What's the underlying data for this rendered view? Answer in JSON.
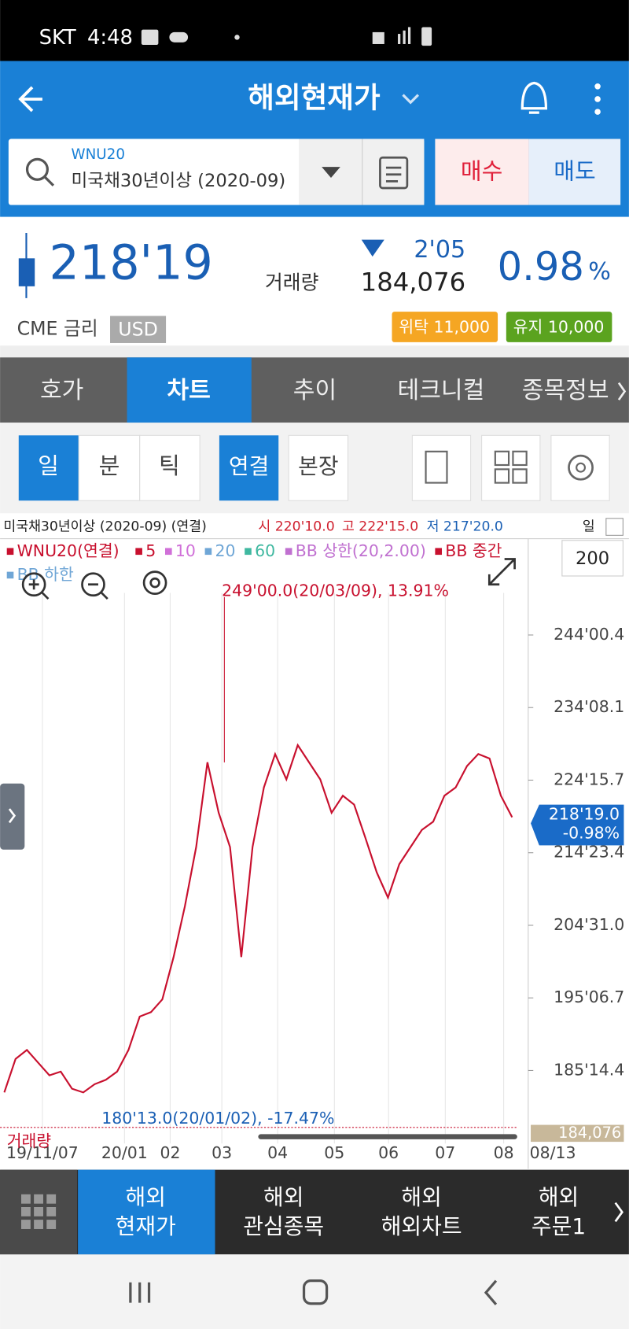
{
  "status": {
    "carrier": "SKT",
    "time": "4:48"
  },
  "header": {
    "title": "해외현재가"
  },
  "search": {
    "code": "WNU20",
    "name": "미국채30년이상 (2020-09)",
    "buy": "매수",
    "sell": "매도"
  },
  "quote": {
    "price": "218'19",
    "change": "2'05",
    "volume_label": "거래량",
    "volume": "184,076",
    "pct": "0.98",
    "pct_unit": "%",
    "exchange": "CME 금리",
    "currency": "USD",
    "margin_entrust": "위탁 11,000",
    "margin_keep": "유지 10,000"
  },
  "tabs": [
    "호가",
    "차트",
    "추이",
    "테크니컬",
    "종목정보"
  ],
  "periods": [
    "일",
    "분",
    "틱"
  ],
  "modes": [
    "연결",
    "본장"
  ],
  "chart_info": {
    "title": "미국채30년이상 (2020-09) (연결)",
    "open": "시 220'10.0",
    "high": "고 222'15.0",
    "low": "저 217'20.0",
    "period": "일",
    "count": "200"
  },
  "legend": [
    {
      "name": "WNU20(연결)",
      "color": "#c8102e"
    },
    {
      "name": "5",
      "color": "#c8102e"
    },
    {
      "name": "10",
      "color": "#d070d8"
    },
    {
      "name": "20",
      "color": "#6fa6d6"
    },
    {
      "name": "60",
      "color": "#3fb8a0"
    },
    {
      "name": "BB 상한(20,2.00)",
      "color": "#c070d0"
    },
    {
      "name": "BB 중간",
      "color": "#c8102e"
    },
    {
      "name": "BB 하한",
      "color": "#6fa6d6"
    }
  ],
  "chart_data": {
    "type": "line",
    "color": "#c8102e",
    "values": [
      182.5,
      187.0,
      188.2,
      186.5,
      184.8,
      185.3,
      183.0,
      182.5,
      183.6,
      184.2,
      185.3,
      188.2,
      192.7,
      193.3,
      195.0,
      200.7,
      207.5,
      215.5,
      226.9,
      220.1,
      215.5,
      200.7,
      215.5,
      223.5,
      228.0,
      224.6,
      229.2,
      226.9,
      224.6,
      220.1,
      222.4,
      221.2,
      216.7,
      212.1,
      208.7,
      213.2,
      215.5,
      217.8,
      218.9,
      222.4,
      223.5,
      226.4,
      228.0,
      227.4,
      222.4,
      219.5
    ],
    "ylim": [
      176.2,
      256.5
    ],
    "yticks": [
      {
        "value": 244.01,
        "label": "244'00.4"
      },
      {
        "value": 234.25,
        "label": "234'08.1"
      },
      {
        "value": 224.49,
        "label": "224'15.7"
      },
      {
        "value": 214.73,
        "label": "214'23.4"
      },
      {
        "value": 204.97,
        "label": "204'31.0"
      },
      {
        "value": 195.21,
        "label": "195'06.7"
      },
      {
        "value": 185.45,
        "label": "185'14.4"
      }
    ],
    "xlabels": [
      "19/11/07",
      "20/01",
      "02",
      "03",
      "04",
      "05",
      "06",
      "07",
      "08",
      "08/13"
    ],
    "high_note": "249'00.0(20/03/09), 13.91%",
    "low_note": "180'13.0(20/01/02), -17.47%",
    "current_label": "218'19.0",
    "current_change": "-0.98%",
    "volume_label": "거래량",
    "volume_value": "184,076"
  },
  "nav": [
    {
      "line1": "해외",
      "line2": "현재가"
    },
    {
      "line1": "해외",
      "line2": "관심종목"
    },
    {
      "line1": "해외",
      "line2": "해외차트"
    },
    {
      "line1": "해외",
      "line2": "주문1"
    }
  ]
}
